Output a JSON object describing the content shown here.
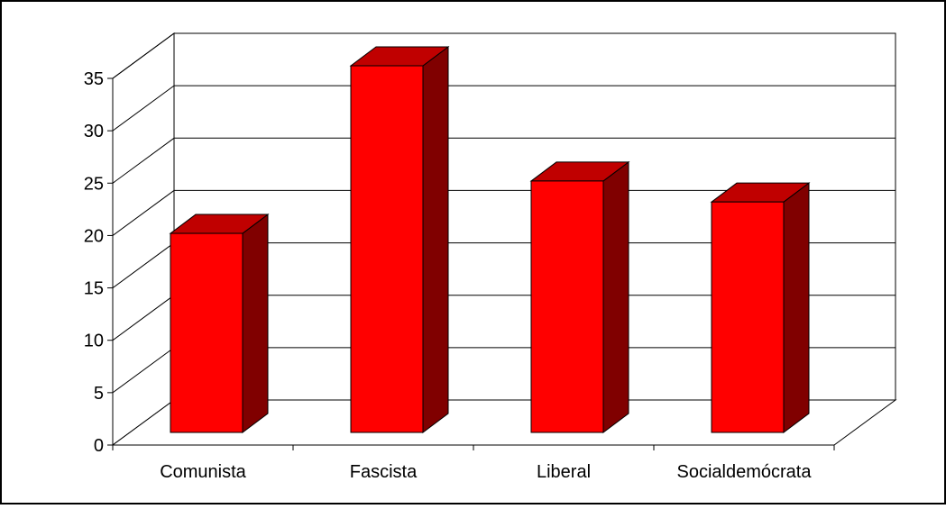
{
  "chart_data": {
    "type": "bar",
    "style": "3d-column",
    "categories": [
      "Comunista",
      "Fascista",
      "Liberal",
      "Socialdemócrata"
    ],
    "values": [
      19,
      35,
      24,
      22
    ],
    "ylim": [
      0,
      35
    ],
    "yticks": [
      0,
      5,
      10,
      15,
      20,
      25,
      30,
      35
    ],
    "ytick_labels": [
      "0",
      "5",
      "10",
      "15",
      "20",
      "25",
      "30",
      "35"
    ],
    "grid": true,
    "legend": "none",
    "colors": {
      "bar_front": "#ff0000",
      "bar_top": "#c00000",
      "bar_side": "#800000",
      "gridline": "#000000",
      "axis": "#000000",
      "frame": "#000000"
    }
  }
}
